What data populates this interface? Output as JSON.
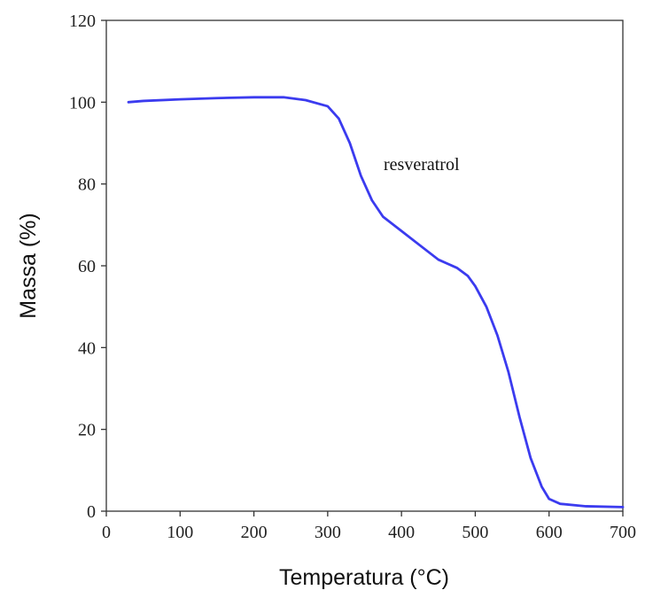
{
  "chart_data": {
    "type": "line",
    "x_label": "Temperatura (°C)",
    "y_label": "Massa (%)",
    "x": [
      30,
      50,
      100,
      150,
      200,
      240,
      270,
      300,
      315,
      330,
      345,
      360,
      375,
      400,
      425,
      450,
      475,
      490,
      500,
      515,
      530,
      545,
      560,
      575,
      590,
      600,
      615,
      650,
      700
    ],
    "series": [
      {
        "name": "resveratrol",
        "color": "#3b3bef",
        "values": [
          100,
          100.3,
          100.7,
          101,
          101.2,
          101.2,
          100.5,
          99,
          96,
          90,
          82,
          76,
          72,
          68.5,
          65,
          61.5,
          59.5,
          57.5,
          55,
          50,
          43,
          34,
          23,
          13,
          6,
          3,
          1.8,
          1.2,
          1
        ]
      }
    ],
    "xlim": [
      0,
      700
    ],
    "ylim": [
      0,
      120
    ],
    "xticks": [
      0,
      100,
      200,
      300,
      400,
      500,
      600,
      700
    ],
    "yticks": [
      0,
      20,
      40,
      60,
      80,
      100,
      120
    ]
  }
}
